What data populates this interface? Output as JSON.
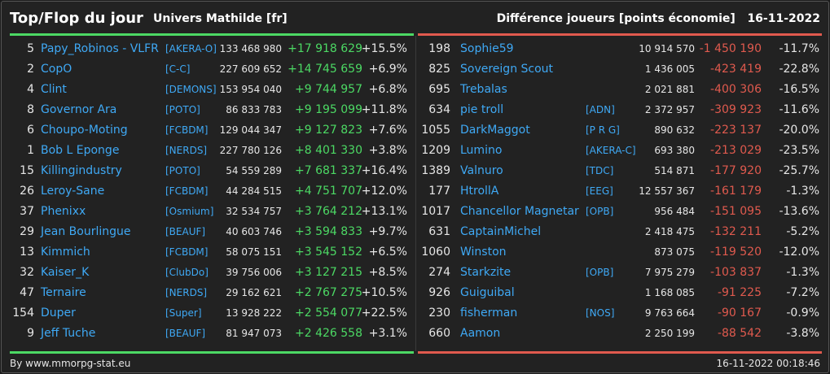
{
  "header": {
    "title": "Top/Flop du jour",
    "universe": "Univers Mathilde [fr]",
    "right_label": "Différence joueurs [points économie]",
    "date": "16-11-2022"
  },
  "colors": {
    "positive": "#4cd964",
    "negative": "#e05a4e",
    "link": "#3fa9f5"
  },
  "top": [
    {
      "rank": "5",
      "name": "Papy_Robinos - VLFR",
      "guild": "[AKERA-O]",
      "points": "133 468 980",
      "diff": "+17 918 629",
      "pct": "+15.5%"
    },
    {
      "rank": "2",
      "name": "CopO",
      "guild": "[C-C]",
      "points": "227 609 652",
      "diff": "+14 745 659",
      "pct": "+6.9%"
    },
    {
      "rank": "4",
      "name": "Clint",
      "guild": "[DEMONS]",
      "points": "153 954 040",
      "diff": "+9 744 957",
      "pct": "+6.8%"
    },
    {
      "rank": "8",
      "name": "Governor Ara",
      "guild": "[POTO]",
      "points": "86 833 783",
      "diff": "+9 195 099",
      "pct": "+11.8%"
    },
    {
      "rank": "6",
      "name": "Choupo-Moting",
      "guild": "[FCBDM]",
      "points": "129 044 347",
      "diff": "+9 127 823",
      "pct": "+7.6%"
    },
    {
      "rank": "1",
      "name": "Bob L Eponge",
      "guild": "[NERDS]",
      "points": "227 780 126",
      "diff": "+8 401 330",
      "pct": "+3.8%"
    },
    {
      "rank": "15",
      "name": "Killingindustry",
      "guild": "[POTO]",
      "points": "54 559 289",
      "diff": "+7 681 337",
      "pct": "+16.4%"
    },
    {
      "rank": "26",
      "name": "Leroy-Sane",
      "guild": "[FCBDM]",
      "points": "44 284 515",
      "diff": "+4 751 707",
      "pct": "+12.0%"
    },
    {
      "rank": "37",
      "name": "Phenixx",
      "guild": "[Osmium]",
      "points": "32 534 757",
      "diff": "+3 764 212",
      "pct": "+13.1%"
    },
    {
      "rank": "29",
      "name": "Jean Bourlingue",
      "guild": "[BEAUF]",
      "points": "40 603 746",
      "diff": "+3 594 833",
      "pct": "+9.7%"
    },
    {
      "rank": "13",
      "name": "Kimmich",
      "guild": "[FCBDM]",
      "points": "58 075 151",
      "diff": "+3 545 152",
      "pct": "+6.5%"
    },
    {
      "rank": "32",
      "name": "Kaiser_K",
      "guild": "[ClubDo]",
      "points": "39 756 006",
      "diff": "+3 127 215",
      "pct": "+8.5%"
    },
    {
      "rank": "47",
      "name": "Ternaire",
      "guild": "[NERDS]",
      "points": "29 162 621",
      "diff": "+2 767 275",
      "pct": "+10.5%"
    },
    {
      "rank": "154",
      "name": "Duper",
      "guild": "[Super]",
      "points": "13 928 222",
      "diff": "+2 554 077",
      "pct": "+22.5%"
    },
    {
      "rank": "9",
      "name": "Jeff Tuche",
      "guild": "[BEAUF]",
      "points": "81 947 073",
      "diff": "+2 426 558",
      "pct": "+3.1%"
    }
  ],
  "flop": [
    {
      "rank": "198",
      "name": "Sophie59",
      "guild": "",
      "points": "10 914 570",
      "diff": "-1 450 190",
      "pct": "-11.7%"
    },
    {
      "rank": "825",
      "name": "Sovereign Scout",
      "guild": "",
      "points": "1 436 005",
      "diff": "-423 419",
      "pct": "-22.8%"
    },
    {
      "rank": "695",
      "name": "Trebalas",
      "guild": "",
      "points": "2 021 881",
      "diff": "-400 306",
      "pct": "-16.5%"
    },
    {
      "rank": "634",
      "name": "pie troll",
      "guild": "[ADN]",
      "points": "2 372 957",
      "diff": "-309 923",
      "pct": "-11.6%"
    },
    {
      "rank": "1055",
      "name": "DarkMaggot",
      "guild": "[P R G]",
      "points": "890 632",
      "diff": "-223 137",
      "pct": "-20.0%"
    },
    {
      "rank": "1209",
      "name": "Lumino",
      "guild": "[AKERA-C]",
      "points": "693 380",
      "diff": "-213 029",
      "pct": "-23.5%"
    },
    {
      "rank": "1389",
      "name": "Valnuro",
      "guild": "[TDC]",
      "points": "514 871",
      "diff": "-177 920",
      "pct": "-25.7%"
    },
    {
      "rank": "177",
      "name": "HtrollA",
      "guild": "[EEG]",
      "points": "12 557 367",
      "diff": "-161 179",
      "pct": "-1.3%"
    },
    {
      "rank": "1017",
      "name": "Chancellor Magnetar",
      "guild": "[OPB]",
      "points": "956 484",
      "diff": "-151 095",
      "pct": "-13.6%"
    },
    {
      "rank": "631",
      "name": "CaptainMichel",
      "guild": "",
      "points": "2 418 475",
      "diff": "-132 211",
      "pct": "-5.2%"
    },
    {
      "rank": "1060",
      "name": "Winston",
      "guild": "",
      "points": "873 075",
      "diff": "-119 520",
      "pct": "-12.0%"
    },
    {
      "rank": "274",
      "name": "Starkzite",
      "guild": "[OPB]",
      "points": "7 975 279",
      "diff": "-103 837",
      "pct": "-1.3%"
    },
    {
      "rank": "926",
      "name": "Guiguibal",
      "guild": "",
      "points": "1 168 085",
      "diff": "-91 225",
      "pct": "-7.2%"
    },
    {
      "rank": "230",
      "name": "fisherman",
      "guild": "[NOS]",
      "points": "9 763 664",
      "diff": "-90 167",
      "pct": "-0.9%"
    },
    {
      "rank": "660",
      "name": "Aamon",
      "guild": "",
      "points": "2 250 199",
      "diff": "-88 542",
      "pct": "-3.8%"
    }
  ],
  "footer": {
    "left": "By www.mmorpg-stat.eu",
    "right": "16-11-2022 00:18:46"
  }
}
